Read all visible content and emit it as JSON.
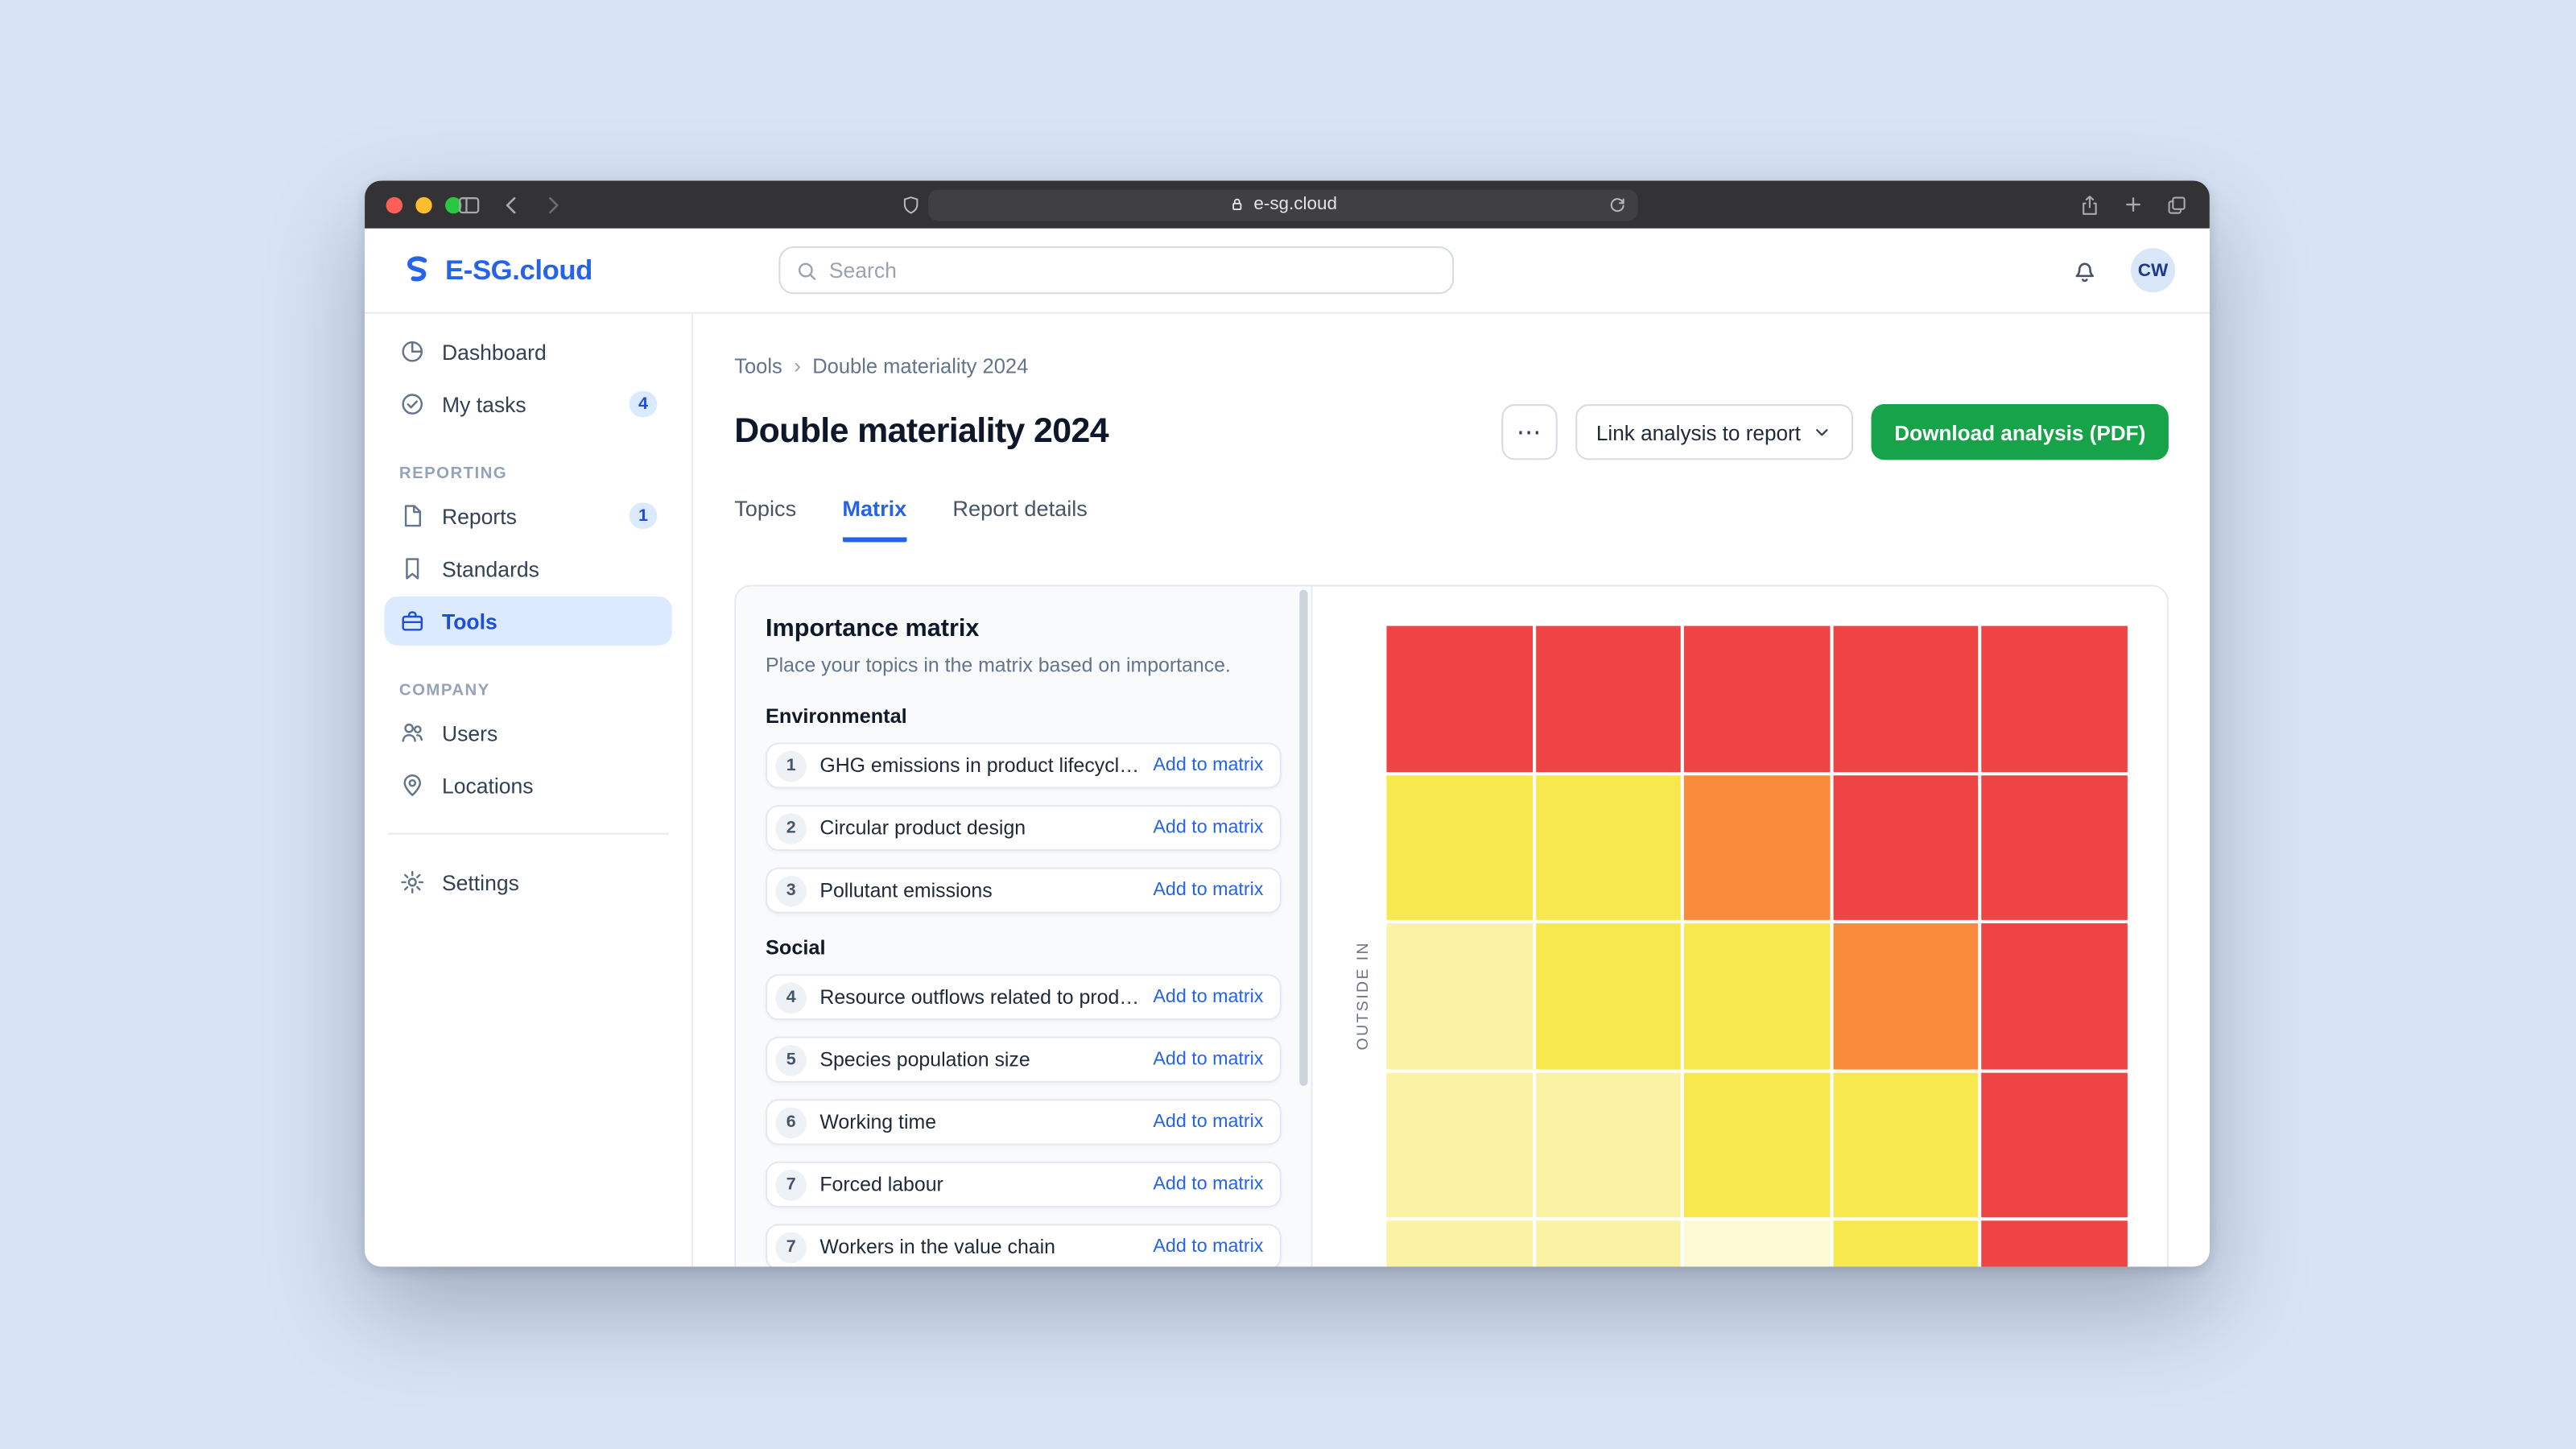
{
  "browser": {
    "url": "e-sg.cloud"
  },
  "app_header": {
    "brand": "E-SG.cloud",
    "search_placeholder": "Search",
    "avatar_initials": "CW"
  },
  "sidebar": {
    "main_items": [
      {
        "label": "Dashboard",
        "icon": "dashboard-icon"
      },
      {
        "label": "My tasks",
        "icon": "tasks-icon",
        "badge": "4"
      }
    ],
    "sections": [
      {
        "title": "REPORTING",
        "items": [
          {
            "label": "Reports",
            "icon": "reports-icon",
            "badge": "1"
          },
          {
            "label": "Standards",
            "icon": "standards-icon"
          },
          {
            "label": "Tools",
            "icon": "tools-icon",
            "active": true
          }
        ]
      },
      {
        "title": "COMPANY",
        "items": [
          {
            "label": "Users",
            "icon": "users-icon"
          },
          {
            "label": "Locations",
            "icon": "locations-icon"
          }
        ]
      }
    ],
    "footer_items": [
      {
        "label": "Settings",
        "icon": "settings-icon"
      }
    ]
  },
  "page": {
    "breadcrumb": [
      "Tools",
      "Double materiality 2024"
    ],
    "breadcrumb_separator": "›",
    "title": "Double materiality 2024",
    "actions": {
      "more": "⋯",
      "link_report": "Link analysis to report",
      "download": "Download analysis (PDF)"
    },
    "tabs": [
      {
        "label": "Topics"
      },
      {
        "label": "Matrix",
        "active": true
      },
      {
        "label": "Report details"
      }
    ]
  },
  "matrix_panel": {
    "title": "Importance matrix",
    "description": "Place your topics in the matrix based on importance.",
    "add_action_label": "Add to matrix",
    "groups": [
      {
        "name": "Environmental",
        "topics": [
          {
            "num": "1",
            "label": "GHG emissions in product lifecycle (s..."
          },
          {
            "num": "2",
            "label": "Circular product design"
          },
          {
            "num": "3",
            "label": "Pollutant emissions"
          }
        ]
      },
      {
        "name": "Social",
        "topics": [
          {
            "num": "4",
            "label": "Resource outflows related to product..."
          },
          {
            "num": "5",
            "label": "Species population size"
          },
          {
            "num": "6",
            "label": "Working time"
          },
          {
            "num": "7",
            "label": "Forced labour"
          },
          {
            "num": "7",
            "label": "Workers in the value chain"
          }
        ]
      }
    ]
  },
  "chart_data": {
    "type": "heatmap",
    "title": "Importance matrix",
    "ylabel": "OUTSIDE IN",
    "xlabel": "",
    "rows": 5,
    "cols": 5,
    "legend_position": "none",
    "palette": {
      "red": "#ef4444",
      "orange": "#f98c3b",
      "yellow": "#f7e84d",
      "pale_yellow": "#faf3a3",
      "palest_yellow": "#fcf9d4"
    },
    "cells": [
      [
        "red",
        "red",
        "red",
        "red",
        "red"
      ],
      [
        "yellow",
        "yellow",
        "orange",
        "red",
        "red"
      ],
      [
        "pale_yellow",
        "yellow",
        "yellow",
        "orange",
        "red"
      ],
      [
        "pale_yellow",
        "pale_yellow",
        "yellow",
        "yellow",
        "red"
      ],
      [
        "pale_yellow",
        "pale_yellow",
        "palest_yellow",
        "yellow",
        "red"
      ]
    ]
  }
}
